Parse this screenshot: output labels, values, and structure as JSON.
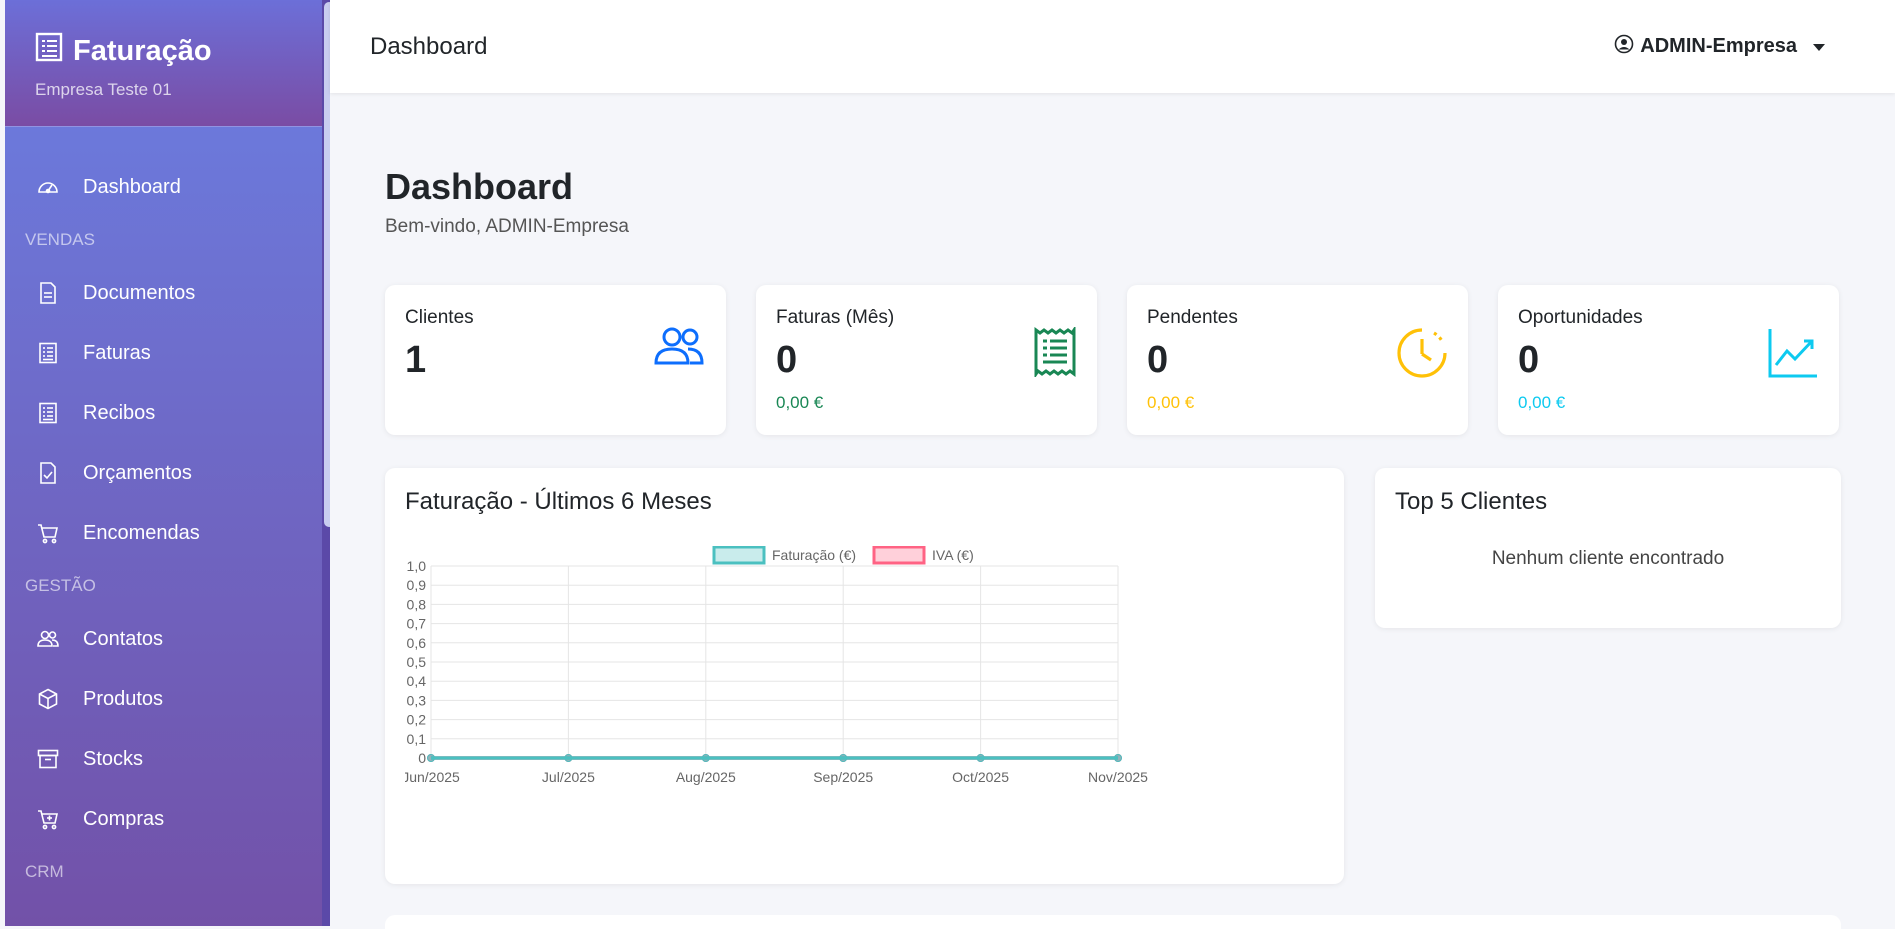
{
  "brand": {
    "title": "Faturação",
    "subtitle": "Empresa Teste 01"
  },
  "sidebar": {
    "items": [
      {
        "label": "Dashboard",
        "icon": "speedometer-icon"
      },
      {
        "section": "VENDAS"
      },
      {
        "label": "Documentos",
        "icon": "document-icon"
      },
      {
        "label": "Faturas",
        "icon": "receipt-icon"
      },
      {
        "label": "Recibos",
        "icon": "receipt-icon"
      },
      {
        "label": "Orçamentos",
        "icon": "file-check-icon"
      },
      {
        "label": "Encomendas",
        "icon": "cart-icon"
      },
      {
        "section": "GESTÃO"
      },
      {
        "label": "Contatos",
        "icon": "people-icon"
      },
      {
        "label": "Produtos",
        "icon": "box-icon"
      },
      {
        "label": "Stocks",
        "icon": "archive-icon"
      },
      {
        "label": "Compras",
        "icon": "cart-plus-icon"
      },
      {
        "section": "CRM"
      }
    ]
  },
  "topbar": {
    "title": "Dashboard",
    "user": "ADMIN-Empresa"
  },
  "page": {
    "title": "Dashboard",
    "subtitle": "Bem-vindo, ADMIN-Empresa"
  },
  "stats": [
    {
      "label": "Clientes",
      "value": "1",
      "sub": "",
      "icon": "people-icon",
      "color": "#0d6efd"
    },
    {
      "label": "Faturas (Mês)",
      "value": "0",
      "sub": "0,00 €",
      "icon": "receipt-icon",
      "color": "#198754"
    },
    {
      "label": "Pendentes",
      "value": "0",
      "sub": "0,00 €",
      "icon": "clock-icon",
      "color": "#ffc107"
    },
    {
      "label": "Oportunidades",
      "value": "0",
      "sub": "0,00 €",
      "icon": "graph-up-icon",
      "color": "#0dcaf0"
    }
  ],
  "chart_card": {
    "title": "Faturação - Últimos 6 Meses"
  },
  "top5": {
    "title": "Top 5 Clientes",
    "empty": "Nenhum cliente encontrado"
  },
  "chart_data": {
    "type": "line",
    "categories": [
      "Jun/2025",
      "Jul/2025",
      "Aug/2025",
      "Sep/2025",
      "Oct/2025",
      "Nov/2025"
    ],
    "series": [
      {
        "name": "Faturação (€)",
        "values": [
          0,
          0,
          0,
          0,
          0,
          0
        ],
        "color": "#4bc0c0"
      },
      {
        "name": "IVA (€)",
        "values": [
          0,
          0,
          0,
          0,
          0,
          0
        ],
        "color": "#ff6384"
      }
    ],
    "yticks": [
      "0",
      "0,1",
      "0,2",
      "0,3",
      "0,4",
      "0,5",
      "0,6",
      "0,7",
      "0,8",
      "0,9",
      "1,0"
    ],
    "ylim": [
      0,
      1
    ],
    "legend": "top",
    "grid": true
  }
}
